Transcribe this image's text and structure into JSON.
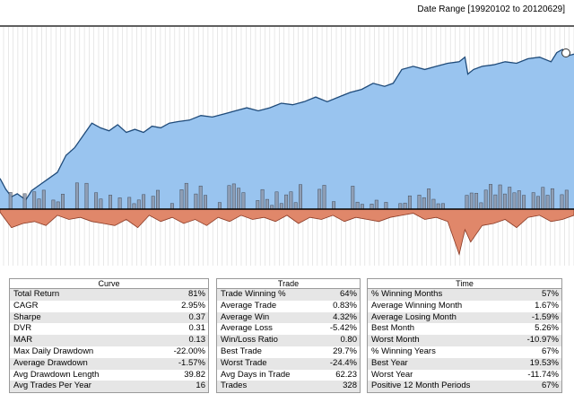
{
  "header": {
    "date_range": "Date Range [19920102 to 20120629]"
  },
  "colors": {
    "equity_fill": "#99c4ef",
    "equity_line": "#1f4b7a",
    "drawdown_fill": "#e0876a",
    "drawdown_line": "#8a3a25",
    "bar_fill": "#8f9bb0",
    "bar_line": "#3a3f48",
    "gridline": "#d8d8d8"
  },
  "panels": [
    {
      "title": "Curve",
      "rows": [
        {
          "label": "Total Return",
          "value": "81%"
        },
        {
          "label": "CAGR",
          "value": "2.95%"
        },
        {
          "label": "Sharpe",
          "value": "0.37"
        },
        {
          "label": "DVR",
          "value": "0.31"
        },
        {
          "label": "MAR",
          "value": "0.13"
        },
        {
          "label": "Max Daily Drawdown",
          "value": "-22.00%"
        },
        {
          "label": "Average Drawdown",
          "value": "-1.57%"
        },
        {
          "label": "Avg Drawdown Length",
          "value": "39.82"
        },
        {
          "label": "Avg Trades Per Year",
          "value": "16"
        }
      ]
    },
    {
      "title": "Trade",
      "rows": [
        {
          "label": "Trade Winning %",
          "value": "64%"
        },
        {
          "label": "Average Trade",
          "value": "0.83%"
        },
        {
          "label": "Average Win",
          "value": "4.32%"
        },
        {
          "label": "Average Loss",
          "value": "-5.42%"
        },
        {
          "label": "Win/Loss Ratio",
          "value": "0.80"
        },
        {
          "label": "Best Trade",
          "value": "29.7%"
        },
        {
          "label": "Worst Trade",
          "value": "-24.4%"
        },
        {
          "label": "Avg Days in Trade",
          "value": "62.23"
        },
        {
          "label": "Trades",
          "value": "328"
        }
      ]
    },
    {
      "title": "Time",
      "rows": [
        {
          "label": "% Winning Months",
          "value": "57%"
        },
        {
          "label": "Average Winning Month",
          "value": "1.67%"
        },
        {
          "label": "Average Losing Month",
          "value": "-1.59%"
        },
        {
          "label": "Best Month",
          "value": "5.26%"
        },
        {
          "label": "Worst Month",
          "value": "-10.97%"
        },
        {
          "label": "% Winning Years",
          "value": "67%"
        },
        {
          "label": "Best Year",
          "value": "19.53%"
        },
        {
          "label": "Worst Year",
          "value": "-11.74%"
        },
        {
          "label": "Positive 12 Month Periods",
          "value": "67%"
        }
      ]
    }
  ],
  "chart_data": {
    "type": "area",
    "x_range": [
      "1992-01-02",
      "2012-06-29"
    ],
    "grid": true,
    "equity_curve": {
      "x": [
        0,
        0.01,
        0.02,
        0.03,
        0.045,
        0.055,
        0.07,
        0.085,
        0.1,
        0.115,
        0.13,
        0.145,
        0.16,
        0.175,
        0.19,
        0.205,
        0.22,
        0.235,
        0.25,
        0.265,
        0.28,
        0.295,
        0.31,
        0.33,
        0.35,
        0.37,
        0.39,
        0.41,
        0.43,
        0.45,
        0.47,
        0.49,
        0.51,
        0.53,
        0.55,
        0.57,
        0.59,
        0.61,
        0.63,
        0.65,
        0.67,
        0.685,
        0.7,
        0.72,
        0.74,
        0.76,
        0.78,
        0.8,
        0.81,
        0.815,
        0.825,
        0.84,
        0.86,
        0.88,
        0.9,
        0.92,
        0.94,
        0.96,
        0.97,
        0.98,
        0.99,
        1.0
      ],
      "y": [
        1.0,
        0.93,
        0.88,
        0.9,
        0.86,
        0.92,
        0.96,
        1.0,
        1.04,
        1.15,
        1.2,
        1.28,
        1.36,
        1.33,
        1.31,
        1.35,
        1.3,
        1.32,
        1.3,
        1.34,
        1.33,
        1.36,
        1.37,
        1.38,
        1.41,
        1.4,
        1.42,
        1.44,
        1.46,
        1.44,
        1.46,
        1.49,
        1.48,
        1.5,
        1.53,
        1.5,
        1.53,
        1.56,
        1.58,
        1.62,
        1.6,
        1.62,
        1.71,
        1.73,
        1.71,
        1.73,
        1.75,
        1.76,
        1.79,
        1.68,
        1.71,
        1.73,
        1.74,
        1.76,
        1.75,
        1.78,
        1.79,
        1.76,
        1.82,
        1.84,
        1.8,
        1.81
      ]
    },
    "drawdown": {
      "x": [
        0,
        0.02,
        0.04,
        0.06,
        0.08,
        0.1,
        0.12,
        0.14,
        0.16,
        0.18,
        0.2,
        0.22,
        0.24,
        0.26,
        0.28,
        0.3,
        0.32,
        0.34,
        0.36,
        0.38,
        0.4,
        0.42,
        0.44,
        0.46,
        0.48,
        0.5,
        0.52,
        0.54,
        0.56,
        0.58,
        0.6,
        0.62,
        0.64,
        0.66,
        0.68,
        0.7,
        0.72,
        0.74,
        0.76,
        0.78,
        0.8,
        0.81,
        0.82,
        0.84,
        0.86,
        0.88,
        0.9,
        0.92,
        0.94,
        0.96,
        0.98,
        1.0
      ],
      "y": [
        -1.5,
        -9,
        -7,
        -6,
        -8,
        -3,
        -5,
        -4,
        -6,
        -7,
        -8,
        -5,
        -9,
        -3,
        -6,
        -4,
        -7,
        -5,
        -8,
        -4,
        -6,
        -3,
        -5,
        -4,
        -6,
        -3,
        -7,
        -4,
        -5,
        -3,
        -6,
        -4,
        -5,
        -6,
        -4,
        -3,
        -2,
        -5,
        -4,
        -6,
        -22,
        -10,
        -16,
        -8,
        -7,
        -5,
        -9,
        -4,
        -3,
        -6,
        -5,
        -3
      ]
    }
  }
}
